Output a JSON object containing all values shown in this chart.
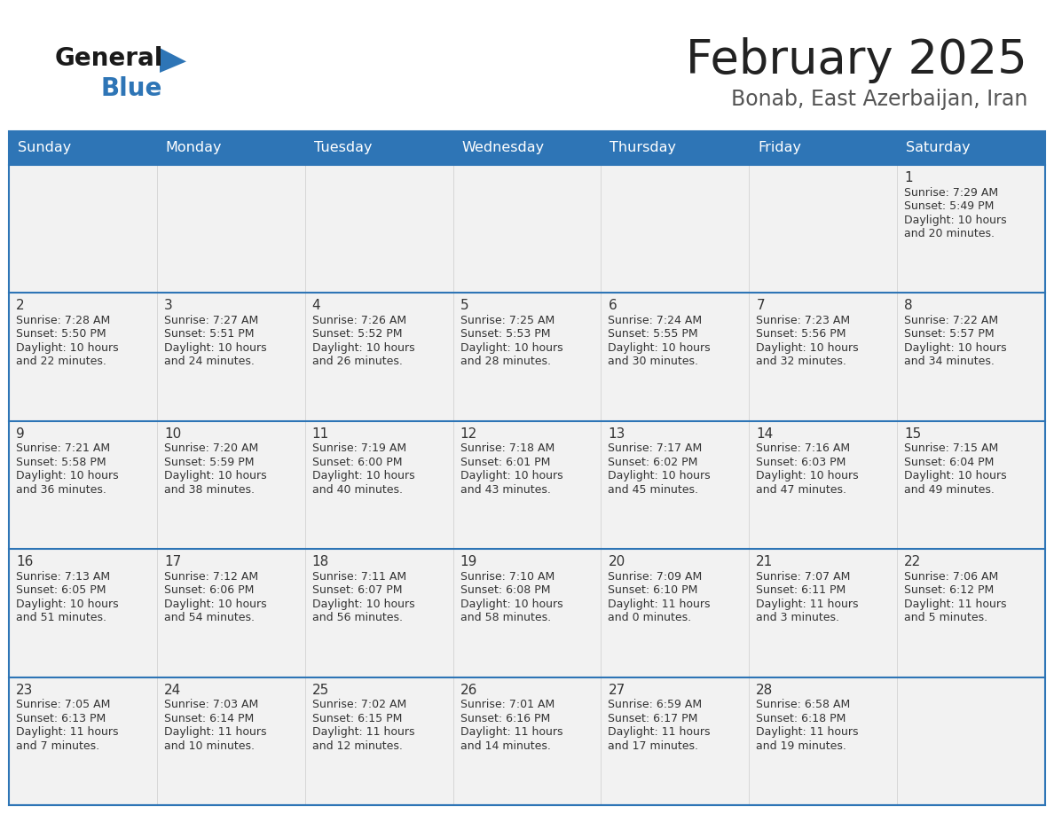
{
  "title": "February 2025",
  "subtitle": "Bonab, East Azerbaijan, Iran",
  "header_color": "#2E75B6",
  "header_text_color": "#FFFFFF",
  "cell_bg": "#F2F2F2",
  "title_color": "#222222",
  "subtitle_color": "#555555",
  "text_color": "#333333",
  "day_headers": [
    "Sunday",
    "Monday",
    "Tuesday",
    "Wednesday",
    "Thursday",
    "Friday",
    "Saturday"
  ],
  "calendar": [
    [
      null,
      null,
      null,
      null,
      null,
      null,
      {
        "day": "1",
        "sunrise": "7:29 AM",
        "sunset": "5:49 PM",
        "daylight": "10 hours and 20 minutes."
      }
    ],
    [
      {
        "day": "2",
        "sunrise": "7:28 AM",
        "sunset": "5:50 PM",
        "daylight": "10 hours and 22 minutes."
      },
      {
        "day": "3",
        "sunrise": "7:27 AM",
        "sunset": "5:51 PM",
        "daylight": "10 hours and 24 minutes."
      },
      {
        "day": "4",
        "sunrise": "7:26 AM",
        "sunset": "5:52 PM",
        "daylight": "10 hours and 26 minutes."
      },
      {
        "day": "5",
        "sunrise": "7:25 AM",
        "sunset": "5:53 PM",
        "daylight": "10 hours and 28 minutes."
      },
      {
        "day": "6",
        "sunrise": "7:24 AM",
        "sunset": "5:55 PM",
        "daylight": "10 hours and 30 minutes."
      },
      {
        "day": "7",
        "sunrise": "7:23 AM",
        "sunset": "5:56 PM",
        "daylight": "10 hours and 32 minutes."
      },
      {
        "day": "8",
        "sunrise": "7:22 AM",
        "sunset": "5:57 PM",
        "daylight": "10 hours and 34 minutes."
      }
    ],
    [
      {
        "day": "9",
        "sunrise": "7:21 AM",
        "sunset": "5:58 PM",
        "daylight": "10 hours and 36 minutes."
      },
      {
        "day": "10",
        "sunrise": "7:20 AM",
        "sunset": "5:59 PM",
        "daylight": "10 hours and 38 minutes."
      },
      {
        "day": "11",
        "sunrise": "7:19 AM",
        "sunset": "6:00 PM",
        "daylight": "10 hours and 40 minutes."
      },
      {
        "day": "12",
        "sunrise": "7:18 AM",
        "sunset": "6:01 PM",
        "daylight": "10 hours and 43 minutes."
      },
      {
        "day": "13",
        "sunrise": "7:17 AM",
        "sunset": "6:02 PM",
        "daylight": "10 hours and 45 minutes."
      },
      {
        "day": "14",
        "sunrise": "7:16 AM",
        "sunset": "6:03 PM",
        "daylight": "10 hours and 47 minutes."
      },
      {
        "day": "15",
        "sunrise": "7:15 AM",
        "sunset": "6:04 PM",
        "daylight": "10 hours and 49 minutes."
      }
    ],
    [
      {
        "day": "16",
        "sunrise": "7:13 AM",
        "sunset": "6:05 PM",
        "daylight": "10 hours and 51 minutes."
      },
      {
        "day": "17",
        "sunrise": "7:12 AM",
        "sunset": "6:06 PM",
        "daylight": "10 hours and 54 minutes."
      },
      {
        "day": "18",
        "sunrise": "7:11 AM",
        "sunset": "6:07 PM",
        "daylight": "10 hours and 56 minutes."
      },
      {
        "day": "19",
        "sunrise": "7:10 AM",
        "sunset": "6:08 PM",
        "daylight": "10 hours and 58 minutes."
      },
      {
        "day": "20",
        "sunrise": "7:09 AM",
        "sunset": "6:10 PM",
        "daylight": "11 hours and 0 minutes."
      },
      {
        "day": "21",
        "sunrise": "7:07 AM",
        "sunset": "6:11 PM",
        "daylight": "11 hours and 3 minutes."
      },
      {
        "day": "22",
        "sunrise": "7:06 AM",
        "sunset": "6:12 PM",
        "daylight": "11 hours and 5 minutes."
      }
    ],
    [
      {
        "day": "23",
        "sunrise": "7:05 AM",
        "sunset": "6:13 PM",
        "daylight": "11 hours and 7 minutes."
      },
      {
        "day": "24",
        "sunrise": "7:03 AM",
        "sunset": "6:14 PM",
        "daylight": "11 hours and 10 minutes."
      },
      {
        "day": "25",
        "sunrise": "7:02 AM",
        "sunset": "6:15 PM",
        "daylight": "11 hours and 12 minutes."
      },
      {
        "day": "26",
        "sunrise": "7:01 AM",
        "sunset": "6:16 PM",
        "daylight": "11 hours and 14 minutes."
      },
      {
        "day": "27",
        "sunrise": "6:59 AM",
        "sunset": "6:17 PM",
        "daylight": "11 hours and 17 minutes."
      },
      {
        "day": "28",
        "sunrise": "6:58 AM",
        "sunset": "6:18 PM",
        "daylight": "11 hours and 19 minutes."
      },
      null
    ]
  ]
}
